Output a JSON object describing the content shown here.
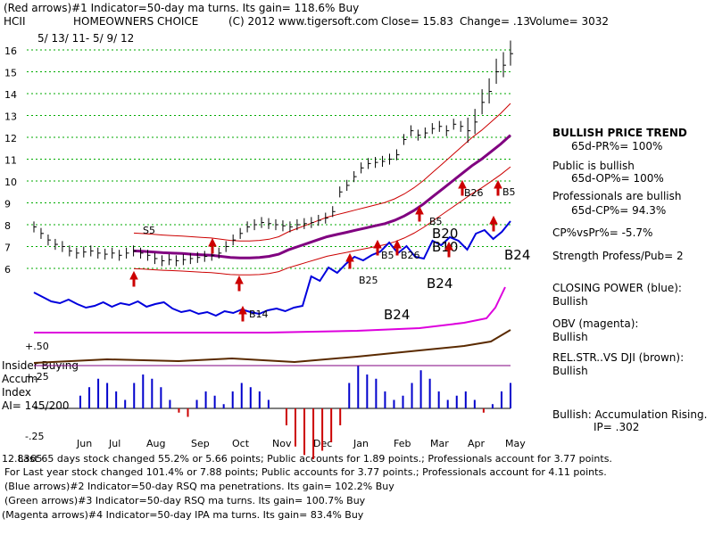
{
  "header": {
    "line1": "(Red arrows)#1 Indicator=50-day ma turns. Its gain= 118.6% Buy",
    "ticker": "HCII",
    "company": "HOMEOWNERS CHOICE",
    "copyright": "(C) 2012 www.tigersoft.com",
    "close": "Close=  15.83",
    "change": "Change= .13",
    "volume": "Volume= 3032",
    "date_range": "5/ 13/ 11-  5/ 9/ 12"
  },
  "right_panel": {
    "trend_title": "BULLISH PRICE TREND",
    "pr": "65d-PR%= 100%",
    "public": "Public is bullish",
    "op": "65d-OP%= 100%",
    "professionals": "Professionals are bullish",
    "cp": "65d-CP%= 94.3%",
    "cpvspr": "CP%vsPr%= -5.7%",
    "strength": "Strength Profess/Pub= 2",
    "closing_power": "CLOSING POWER (blue):",
    "closing_power_v": "Bullish",
    "obv": "OBV (magenta):",
    "obv_v": "Bullish",
    "relstr": "REL.STR..VS DJI (brown):",
    "relstr_v": "Bullish",
    "accum": "Bullish: Accumulation Rising.",
    "ip": "IP=  .302"
  },
  "left_panel": {
    "insider": "Insider Buying",
    "accum": "Accum",
    "index": "Index",
    "ai": "AI= 145/200"
  },
  "footer": {
    "line1_prefix": "Last 65 days stock changed  55.2% or  5.66 points; Public accounts for  1.89 points.;  Professionals account for  3.77 points.",
    "line1_overlap": "12.8365",
    "line2": "For Last year stock changed  101.4% or  7.88 points; Public accounts for  3.77 points.;  Professionals account for  4.11 points.",
    "line3": "(Blue arrows)#2 Indicator=50-day RSQ ma penetrations. Its gain= 102.2% Buy",
    "line4": "(Green arrows)#3 Indicator=50-day RSQ ma turns. Its gain= 100.7% Buy",
    "line5": "(Magenta arrows)#4 Indicator=50-day IPA ma turns. Its gain= 83.4% Buy"
  },
  "colors": {
    "price": "#000000",
    "ma": "#800080",
    "band": "#cc0000",
    "closing_power": "#0000dd",
    "obv": "#dd00dd",
    "relstr": "#5a2a00",
    "accum_pos": "#0000cc",
    "accum_neg": "#cc0000",
    "grid": "#00aa00"
  },
  "chart_data": {
    "type": "line",
    "title": "HOMEOWNERS CHOICE (HCII) daily price with indicators",
    "x_labels": [
      "Jun",
      "Jul",
      "Aug",
      "Sep",
      "Oct",
      "Nov",
      "Dec",
      "Jan",
      "Feb",
      "Mar",
      "Apr",
      "May"
    ],
    "y_ticks": [
      6,
      7,
      8,
      9,
      10,
      11,
      12,
      13,
      14,
      15,
      16
    ],
    "ylim": [
      5.5,
      16.2
    ],
    "price": [
      7.9,
      7.6,
      7.3,
      7.1,
      7.0,
      6.8,
      6.7,
      6.75,
      6.8,
      6.7,
      6.65,
      6.7,
      6.6,
      6.7,
      6.8,
      6.7,
      6.6,
      6.45,
      6.35,
      6.4,
      6.35,
      6.4,
      6.45,
      6.5,
      6.55,
      6.6,
      6.7,
      7.0,
      7.3,
      7.6,
      7.9,
      8.0,
      8.1,
      8.05,
      8.0,
      7.95,
      7.9,
      8.0,
      8.05,
      8.1,
      8.2,
      8.3,
      8.6,
      9.5,
      9.8,
      10.2,
      10.6,
      10.8,
      10.85,
      10.9,
      11.0,
      11.2,
      11.9,
      12.3,
      12.1,
      12.2,
      12.4,
      12.5,
      12.3,
      12.6,
      12.5,
      12.3,
      12.7,
      13.6,
      14.1,
      15.0,
      15.3,
      15.83
    ],
    "ma50": [
      6.8,
      6.78,
      6.75,
      6.72,
      6.7,
      6.68,
      6.65,
      6.62,
      6.6,
      6.55,
      6.5,
      6.48,
      6.48,
      6.5,
      6.55,
      6.65,
      6.85,
      7.0,
      7.15,
      7.3,
      7.45,
      7.55,
      7.65,
      7.75,
      7.85,
      7.95,
      8.05,
      8.2,
      8.4,
      8.65,
      8.95,
      9.3,
      9.65,
      10.0,
      10.35,
      10.7,
      11.0,
      11.35,
      11.7,
      12.1
    ],
    "closing_power_label": "B24",
    "signals": [
      "S5",
      "B5",
      "B26",
      "B25",
      "B20",
      "B10",
      "B24",
      "B14"
    ],
    "accum_ticks": [
      0.5,
      0.25,
      -0.25
    ],
    "ai": "145/200"
  }
}
